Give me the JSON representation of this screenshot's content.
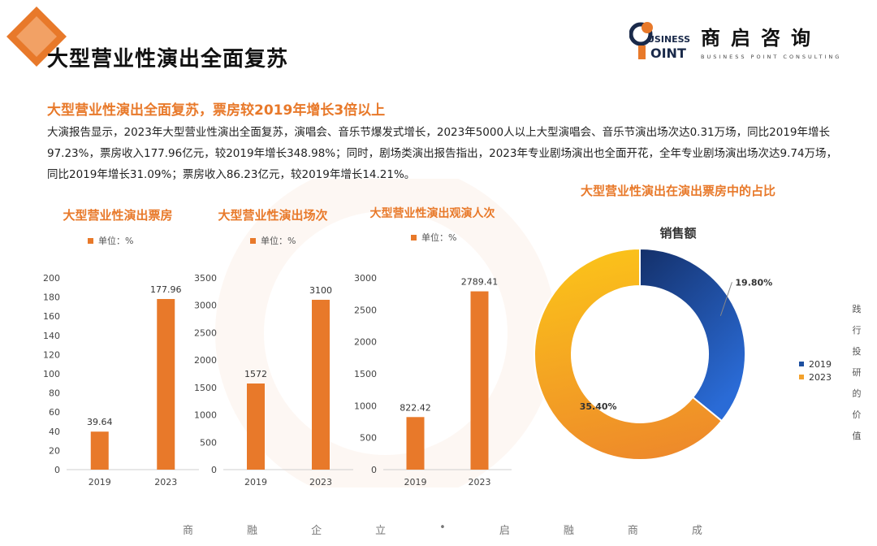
{
  "header": {
    "slide_title": "大型营业性演出全面复苏",
    "logo": {
      "mark_top": "USINESS",
      "mark_bottom": "OINT",
      "name_cn": "商启咨询",
      "name_en": "BUSINESS POINT CONSULTING"
    }
  },
  "intro": {
    "heading": "大型营业性演出全面复苏，票房较2019年增长3倍以上",
    "paragraph": "大演报告显示，2023年大型营业性演出全面复苏，演唱会、音乐节爆发式增长，2023年5000人以上大型演唱会、音乐节演出场次达0.31万场，同比2019年增长97.23%，票房收入177.96亿元，较2019年增长348.98%；同时，剧场类演出报告指出，2023年专业剧场演出也全面开花，全年专业剧场演出场次达9.74万场，同比2019年增长31.09%；票房收入86.23亿元，较2019年增长14.21%。"
  },
  "colors": {
    "accent": "#e8792a",
    "bar": "#e8792a",
    "series_2019": "#1d4fa0",
    "series_2023": "#f3a22d"
  },
  "chart_data": [
    {
      "type": "bar",
      "title": "大型营业性演出票房",
      "legend": "单位：%",
      "categories": [
        "2019",
        "2023"
      ],
      "values": [
        39.64,
        177.96
      ],
      "value_labels": [
        "39.64",
        "177.96"
      ],
      "ylim": [
        0,
        200
      ],
      "yticks": [
        "0",
        "20",
        "40",
        "60",
        "80",
        "100",
        "120",
        "140",
        "160",
        "180",
        "200"
      ]
    },
    {
      "type": "bar",
      "title": "大型营业性演出场次",
      "legend": "单位：%",
      "categories": [
        "2019",
        "2023"
      ],
      "values": [
        1572,
        3100
      ],
      "value_labels": [
        "1572",
        "3100"
      ],
      "ylim": [
        0,
        3500
      ],
      "yticks": [
        "0",
        "500",
        "1000",
        "1500",
        "2000",
        "2500",
        "3000",
        "3500"
      ]
    },
    {
      "type": "bar",
      "title": "大型营业性演出观演人次",
      "legend": "单位：%",
      "categories": [
        "2019",
        "2023"
      ],
      "values": [
        822.42,
        2789.41
      ],
      "value_labels": [
        "822.42",
        "2789.41"
      ],
      "ylim": [
        0,
        3000
      ],
      "yticks": [
        "0",
        "500",
        "1000",
        "1500",
        "2000",
        "2500",
        "3000"
      ]
    },
    {
      "type": "pie",
      "title": "大型营业性演出在演出票房中的占比",
      "subtitle": "销售额",
      "categories": [
        "2019",
        "2023"
      ],
      "values": [
        19.8,
        35.4
      ],
      "value_labels": [
        "19.80%",
        "35.40%"
      ],
      "legend_position": "right"
    }
  ],
  "side_slogan": [
    "践",
    "行",
    "投",
    "研",
    "的",
    "价",
    "值"
  ],
  "footer_slogan": [
    "商",
    "融",
    "企",
    "立",
    "•",
    "启",
    "融",
    "商",
    "成"
  ]
}
